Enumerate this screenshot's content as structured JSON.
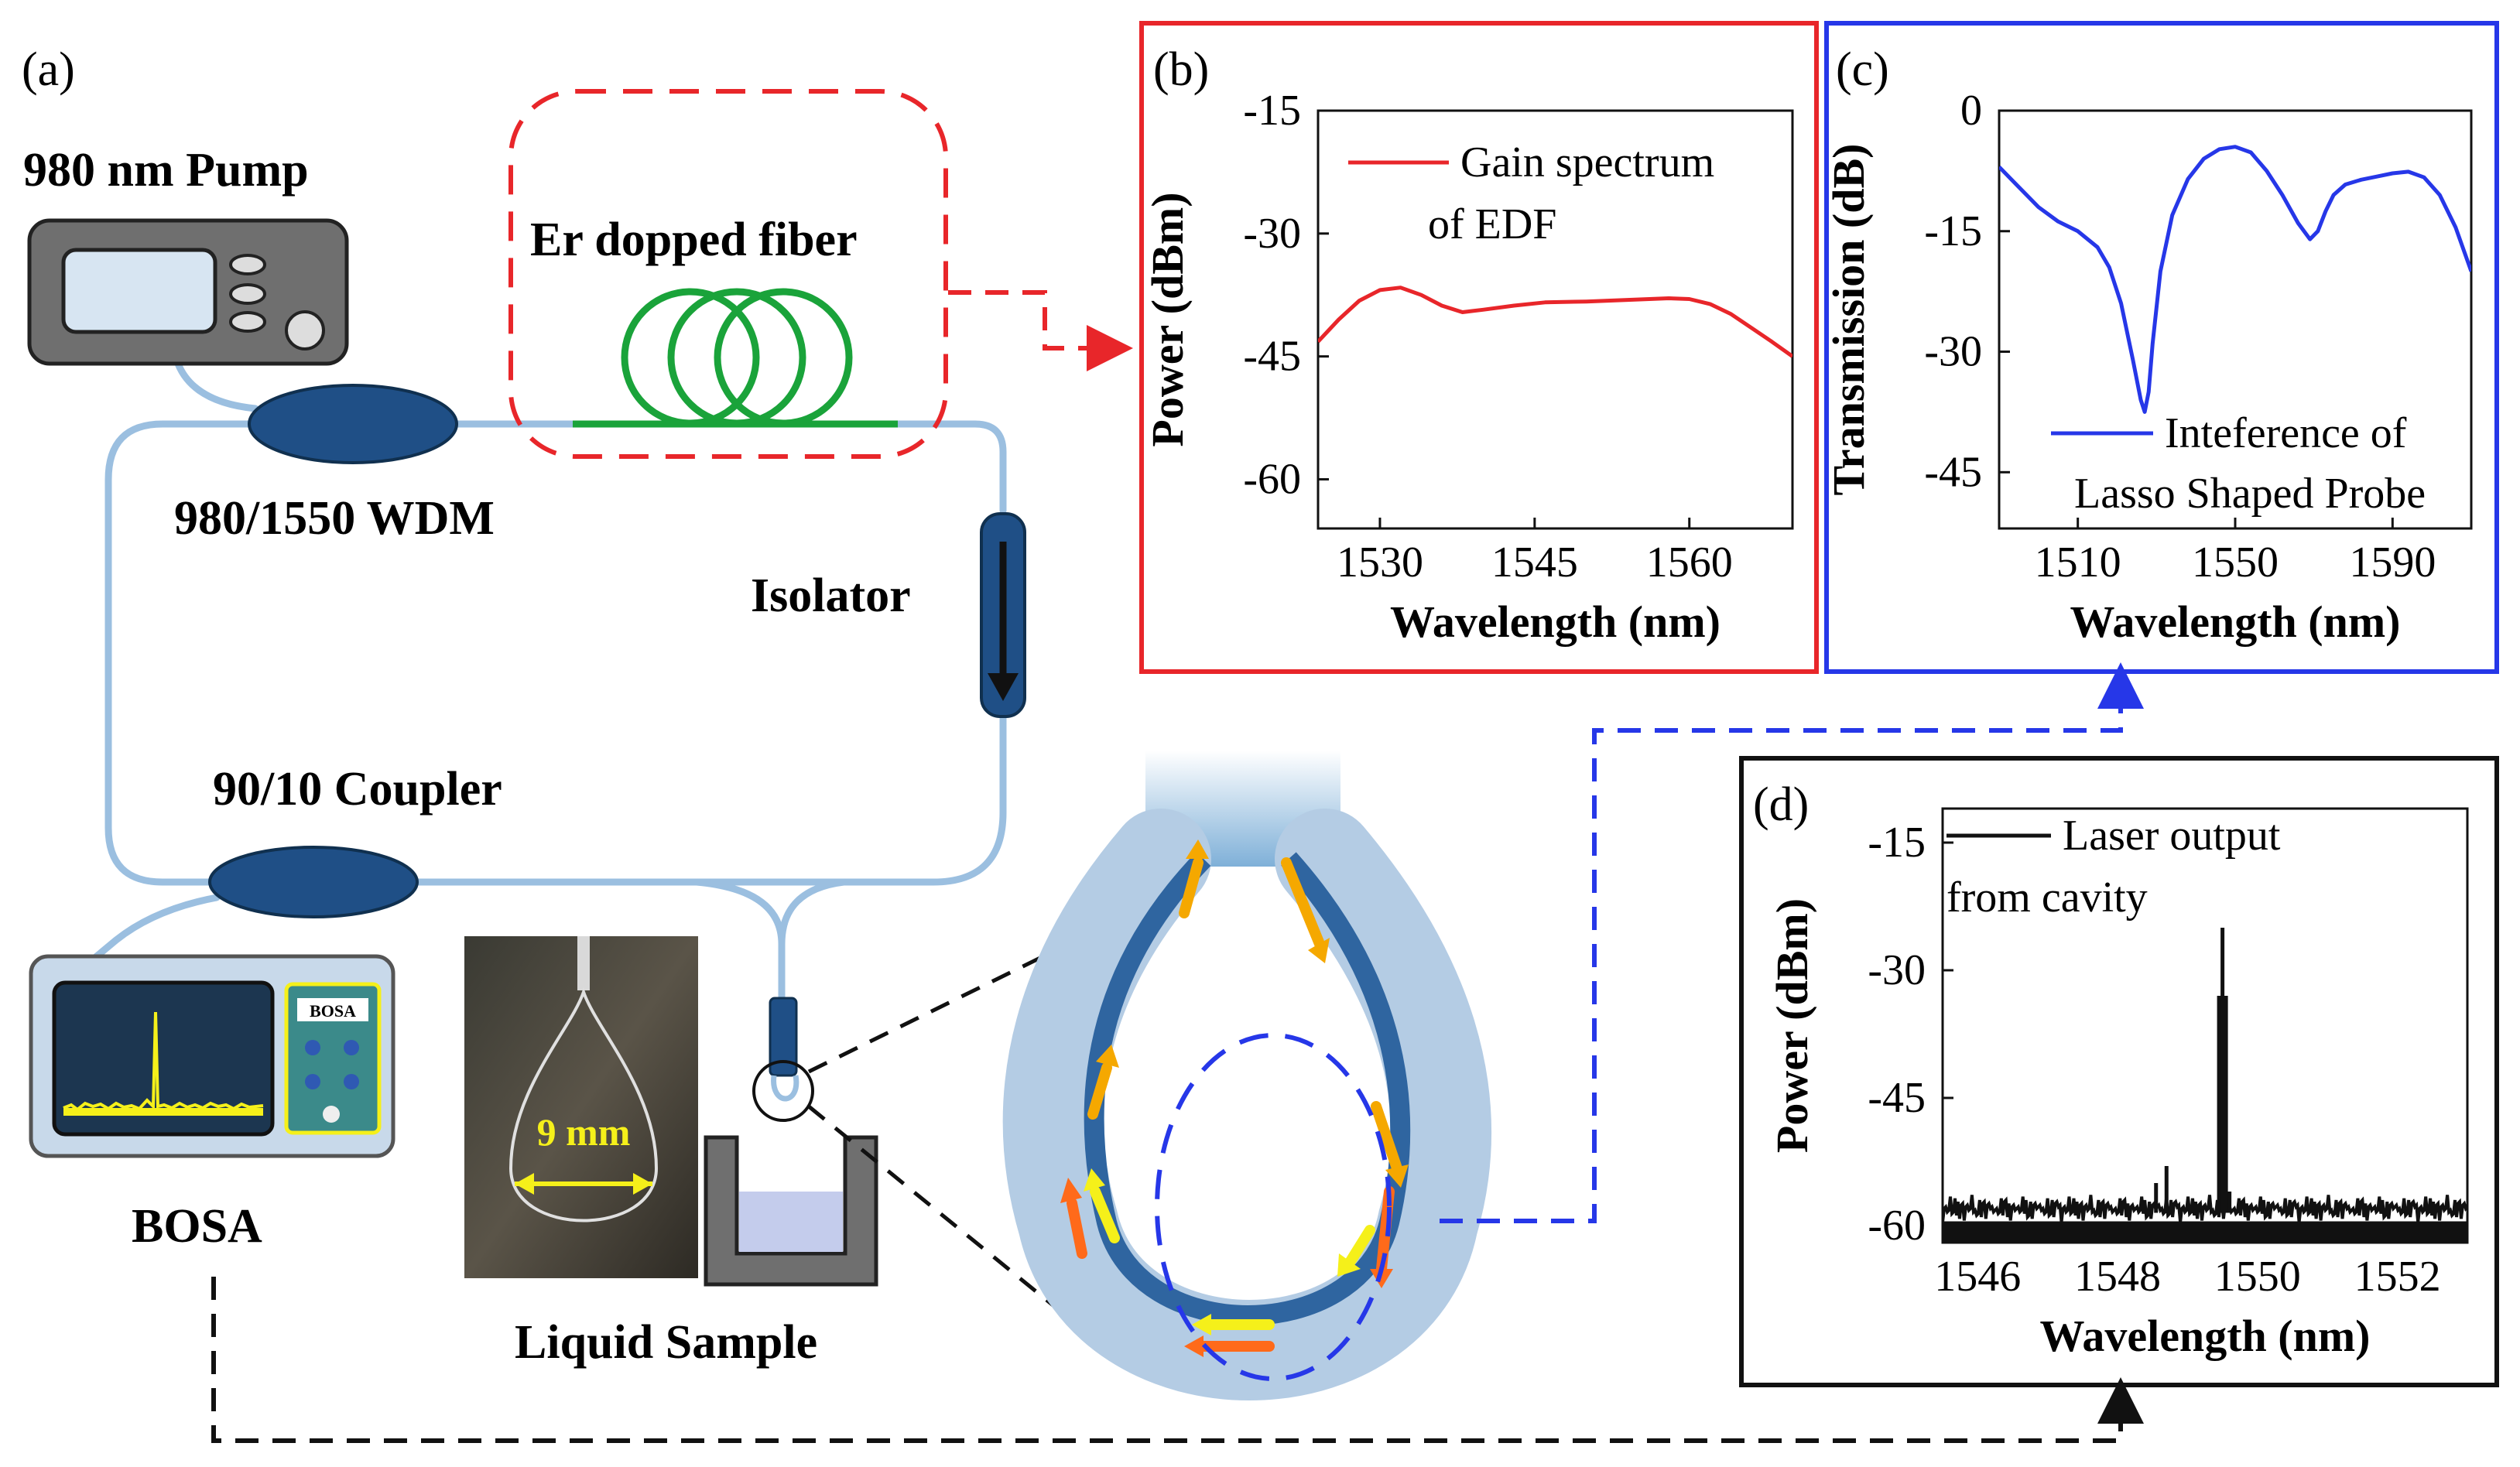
{
  "colors": {
    "fiber": "#9bbfe0",
    "fiber_dark": "#4a79a8",
    "red": "#e8262a",
    "blue": "#2637e8",
    "black": "#111111",
    "green": "#1aa33a",
    "yellow": "#f5f01a",
    "orange": "#ff6a1a",
    "amber": "#f5a800",
    "device_gray": "#6f6f6f",
    "device_blue": "#1f4f86"
  },
  "schematic": {
    "panel_label": "(a)",
    "pump_label": "980 nm Pump",
    "er_fiber_label": "Er dopped fiber",
    "wdm_label": "980/1550 WDM",
    "isolator_label": "Isolator",
    "coupler_label": "90/10 Coupler",
    "bosa_label": "BOSA",
    "bosa_screen_tag": "BOSA",
    "sample_label": "Liquid Sample",
    "dimension_label": "9 mm"
  },
  "chart_data": [
    {
      "id": "b",
      "panel_label": "(b)",
      "type": "line",
      "xlabel": "Wavelength (nm)",
      "ylabel": "Power (dBm)",
      "xlim": [
        1524,
        1570
      ],
      "ylim": [
        -66,
        -15
      ],
      "xticks": [
        1530,
        1545,
        1560
      ],
      "yticks": [
        -15,
        -30,
        -45,
        -60
      ],
      "legend": [
        "Gain spectrum",
        "of EDF"
      ],
      "legend_position": "top-right",
      "color": "#e8262a",
      "series": [
        {
          "name": "Gain spectrum of EDF",
          "x": [
            1524,
            1526,
            1528,
            1530,
            1532,
            1534,
            1536,
            1538,
            1540,
            1543,
            1546,
            1550,
            1554,
            1558,
            1560,
            1562,
            1564,
            1566,
            1568,
            1570
          ],
          "y": [
            -43.2,
            -40.5,
            -38.2,
            -36.9,
            -36.6,
            -37.5,
            -38.8,
            -39.6,
            -39.3,
            -38.8,
            -38.4,
            -38.3,
            -38.1,
            -37.9,
            -38.0,
            -38.6,
            -39.8,
            -41.5,
            -43.2,
            -45.0
          ]
        }
      ]
    },
    {
      "id": "c",
      "panel_label": "(c)",
      "type": "line",
      "xlabel": "Wavelength (nm)",
      "ylabel": "Transmission (dB)",
      "xlim": [
        1490,
        1610
      ],
      "ylim": [
        -52,
        0
      ],
      "xticks": [
        1510,
        1550,
        1590
      ],
      "yticks": [
        0,
        -15,
        -30,
        -45
      ],
      "legend": [
        "Inteference of",
        "Lasso Shaped Probe"
      ],
      "legend_position": "bottom-right",
      "color": "#2637e8",
      "series": [
        {
          "name": "Inteference of Lasso Shaped Probe",
          "x": [
            1490,
            1495,
            1500,
            1505,
            1510,
            1515,
            1518,
            1521,
            1524,
            1526,
            1527,
            1528,
            1529,
            1531,
            1534,
            1538,
            1542,
            1546,
            1550,
            1554,
            1558,
            1562,
            1566,
            1569,
            1571,
            1573,
            1575,
            1578,
            1582,
            1586,
            1590,
            1594,
            1598,
            1602,
            1606,
            1610
          ],
          "y": [
            -7,
            -9.5,
            -12,
            -13.8,
            -15,
            -17,
            -19.5,
            -24,
            -31,
            -36,
            -37.5,
            -35,
            -29,
            -20,
            -13,
            -8.5,
            -6,
            -4.8,
            -4.5,
            -5.2,
            -7.5,
            -10.5,
            -14,
            -16,
            -15,
            -12.5,
            -10.5,
            -9.2,
            -8.6,
            -8.2,
            -7.8,
            -7.6,
            -8.3,
            -10.5,
            -14.5,
            -20
          ]
        }
      ]
    },
    {
      "id": "d",
      "panel_label": "(d)",
      "type": "line",
      "xlabel": "Wavelength (nm)",
      "ylabel": "Power (dBm)",
      "xlim": [
        1545.5,
        1553
      ],
      "ylim": [
        -62,
        -11
      ],
      "xticks": [
        1546,
        1548,
        1550,
        1552
      ],
      "yticks": [
        -15,
        -30,
        -45,
        -60
      ],
      "legend": [
        "Laser output",
        "from cavity"
      ],
      "legend_position": "top-left",
      "color": "#111111",
      "noise_floor": -58.5,
      "series": [
        {
          "name": "Laser output from cavity",
          "x": [
            1548.55,
            1548.7,
            1549.45,
            1549.5,
            1549.55,
            1549.6
          ],
          "y": [
            -55,
            -53,
            -33,
            -25,
            -33,
            -56
          ]
        }
      ]
    }
  ]
}
